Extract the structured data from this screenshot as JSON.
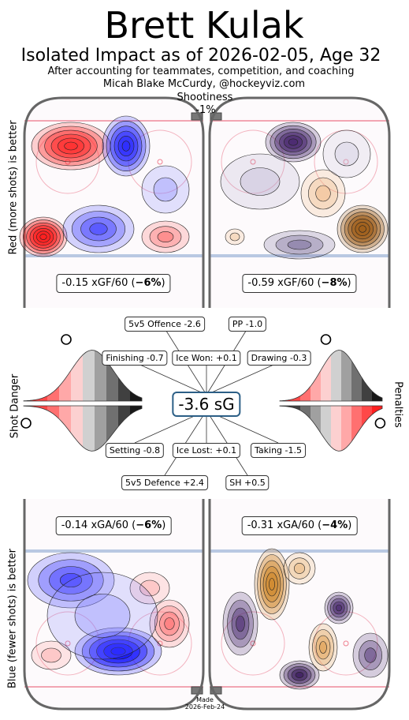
{
  "header": {
    "player": "Brett Kulak",
    "subtitle": "Isolated Impact as of 2026-02-05, Age 32",
    "line1": "After accounting for teammates, competition, and coaching",
    "line2": "Micah Blake McCurdy, @hockeyviz.com",
    "shootiness_label": "Shootiness",
    "shootiness_value": "-1%"
  },
  "axis_labels": {
    "top_left": "Red (more shots) is better",
    "bottom_left": "Blue (fewer shots) is better",
    "middle_left": "Shot Danger",
    "middle_right": "Penalties"
  },
  "footer": {
    "made_label": "Made",
    "made_date": "2026-Feb-24"
  },
  "colors": {
    "rink_border": "#666666",
    "red_line": "#f2a6b3",
    "blue_line": "#b9c8e2",
    "center_box_border": "#2c5f86",
    "hot": "#ff2020",
    "cold": "#2020ff",
    "pp_dark": "#3a1a5c",
    "pp_orange": "#b46a1e"
  },
  "chart_data": [
    {
      "type": "heatmap",
      "panel": "even-strength-offence",
      "stat_text": "-0.15 xGF/60 (",
      "stat_pct": "−6%",
      "stat_close": ")",
      "value_xgf60": -0.15,
      "pct": -6,
      "colors": [
        "#ff2020",
        "#2020ff"
      ]
    },
    {
      "type": "heatmap",
      "panel": "powerplay-offence",
      "stat_text": "-0.59 xGF/60 (",
      "stat_pct": "−8%",
      "stat_close": ")",
      "value_xgf60": -0.59,
      "pct": -8,
      "colors": [
        "#3a1a5c",
        "#b46a1e"
      ]
    },
    {
      "type": "heatmap",
      "panel": "even-strength-defence",
      "stat_text": "-0.14 xGA/60 (",
      "stat_pct": "−6%",
      "stat_close": ")",
      "value_xga60": -0.14,
      "pct": -6,
      "colors": [
        "#2020ff",
        "#ff2020"
      ]
    },
    {
      "type": "heatmap",
      "panel": "penalty-kill-defence",
      "stat_text": "-0.31 xGA/60 (",
      "stat_pct": "−4%",
      "stat_close": ")",
      "value_xga60": -0.31,
      "pct": -4,
      "colors": [
        "#3a1a5c",
        "#b46a1e"
      ]
    },
    {
      "type": "area",
      "panel": "shot-danger-distribution",
      "upper_marker_percentile": 0.36,
      "lower_marker_percentile": 0.02
    },
    {
      "type": "area",
      "panel": "penalties-distribution",
      "upper_marker_percentile": 0.6,
      "lower_marker_percentile": 0.98
    },
    {
      "type": "table",
      "panel": "component-summary",
      "total": "-3.6 sG",
      "components": [
        {
          "label": "5v5 Offence -2.6",
          "value": -2.6
        },
        {
          "label": "PP -1.0",
          "value": -1.0
        },
        {
          "label": "Finishing -0.7",
          "value": -0.7
        },
        {
          "label": "Ice Won: +0.1",
          "value": 0.1
        },
        {
          "label": "Drawing -0.3",
          "value": -0.3
        },
        {
          "label": "Setting -0.8",
          "value": -0.8
        },
        {
          "label": "Ice Lost: +0.1",
          "value": 0.1
        },
        {
          "label": "Taking -1.5",
          "value": -1.5
        },
        {
          "label": "5v5 Defence +2.4",
          "value": 2.4
        },
        {
          "label": "SH +0.5",
          "value": 0.5
        }
      ]
    }
  ]
}
